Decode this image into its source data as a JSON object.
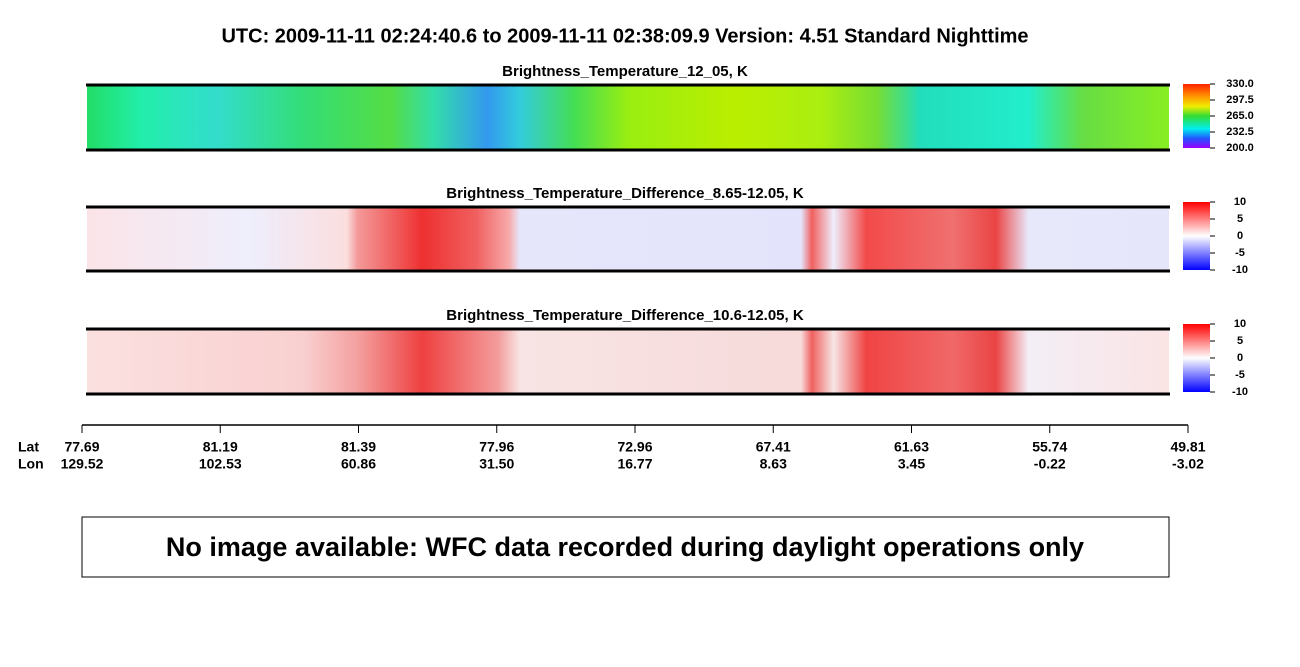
{
  "header": {
    "title": "UTC:  2009-11-11   02:24:40.6  to  2009-11-11   02:38:09.9    Version: 4.51  Standard Nighttime"
  },
  "panels": [
    {
      "title": "Brightness_Temperature_12_05, K",
      "colorbar": [
        "330.0",
        "297.5",
        "265.0",
        "232.5",
        "200.0"
      ]
    },
    {
      "title": "Brightness_Temperature_Difference_8.65-12.05, K",
      "colorbar": [
        "10",
        "5",
        "0",
        "-5",
        "-10"
      ]
    },
    {
      "title": "Brightness_Temperature_Difference_10.6-12.05, K",
      "colorbar": [
        "10",
        "5",
        "0",
        "-5",
        "-10"
      ]
    }
  ],
  "axis": {
    "lat_label": "Lat",
    "lon_label": "Lon",
    "lat": [
      "77.69",
      "81.19",
      "81.39",
      "77.96",
      "72.96",
      "67.41",
      "61.63",
      "55.74",
      "49.81"
    ],
    "lon": [
      "129.52",
      "102.53",
      "60.86",
      "31.50",
      "16.77",
      "8.63",
      "3.45",
      "-0.22",
      "-3.02"
    ]
  },
  "notice": "No image available: WFC data recorded during daylight operations only"
}
